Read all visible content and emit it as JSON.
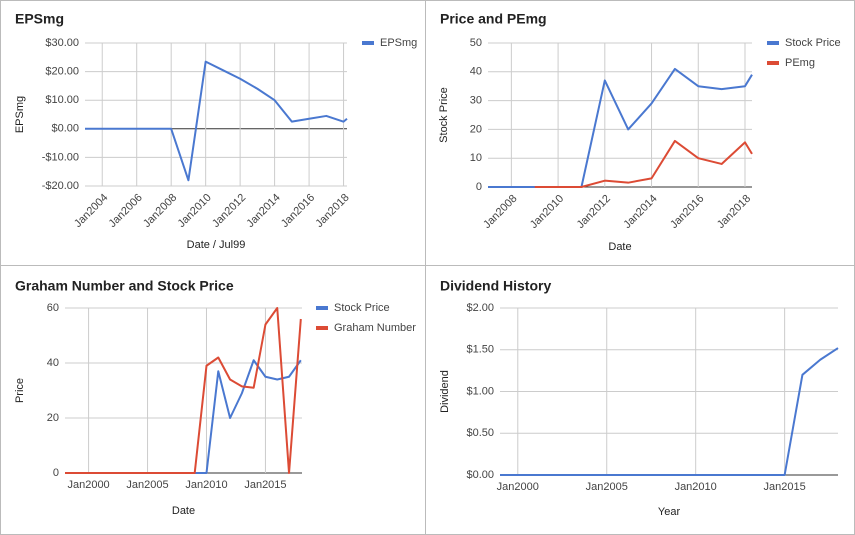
{
  "chart_data": [
    {
      "type": "line",
      "title": "EPSmg",
      "x_label": "Date / Jul99",
      "y_label": "EPSmg",
      "x": [
        2003,
        2004,
        2005,
        2006,
        2007,
        2008,
        2009,
        2010,
        2011,
        2012,
        2013,
        2014,
        2015,
        2016,
        2017,
        2018,
        2018.2
      ],
      "series": [
        {
          "name": "EPSmg",
          "color": "#4a78d0",
          "values": [
            0,
            0,
            0,
            0,
            0,
            0,
            -18,
            23.5,
            20.5,
            17.5,
            14,
            10,
            2.5,
            3.5,
            4.5,
            2.5,
            3.5
          ]
        }
      ],
      "xlim": [
        2003,
        2018.2
      ],
      "xticks": [
        {
          "value": 2004,
          "label": "Jan2004"
        },
        {
          "value": 2006,
          "label": "Jan2006"
        },
        {
          "value": 2008,
          "label": "Jan2008"
        },
        {
          "value": 2010,
          "label": "Jan2010"
        },
        {
          "value": 2012,
          "label": "Jan2012"
        },
        {
          "value": 2014,
          "label": "Jan2014"
        },
        {
          "value": 2016,
          "label": "Jan2016"
        },
        {
          "value": 2018,
          "label": "Jan2018"
        }
      ],
      "ylim": [
        -20,
        30
      ],
      "yticks": [
        {
          "value": -20,
          "label": "-$20.00"
        },
        {
          "value": -10,
          "label": "-$10.00"
        },
        {
          "value": 0,
          "label": "$0.00"
        },
        {
          "value": 10,
          "label": "$10.00"
        },
        {
          "value": 20,
          "label": "$20.00"
        },
        {
          "value": 30,
          "label": "$30.00"
        }
      ],
      "grid": true,
      "legend": "right"
    },
    {
      "type": "line",
      "title": "Price and PEmg",
      "x_label": "Date",
      "y_label": "Stock Price",
      "x": [
        2007,
        2008,
        2009,
        2010,
        2011,
        2012,
        2013,
        2014,
        2015,
        2016,
        2017,
        2018,
        2018.3
      ],
      "series": [
        {
          "name": "Stock Price",
          "color": "#4a78d0",
          "values": [
            0,
            0,
            0,
            0,
            0,
            37,
            20,
            29,
            41,
            35,
            34,
            35,
            39
          ]
        },
        {
          "name": "PEmg",
          "color": "#dc4b35",
          "values": [
            null,
            null,
            0,
            0,
            0,
            2.2,
            1.5,
            3,
            16,
            10,
            8,
            15.5,
            11.5
          ]
        }
      ],
      "xlim": [
        2007,
        2018.3
      ],
      "xticks": [
        {
          "value": 2008,
          "label": "Jan2008"
        },
        {
          "value": 2010,
          "label": "Jan2010"
        },
        {
          "value": 2012,
          "label": "Jan2012"
        },
        {
          "value": 2014,
          "label": "Jan2014"
        },
        {
          "value": 2016,
          "label": "Jan2016"
        },
        {
          "value": 2018,
          "label": "Jan2018"
        }
      ],
      "ylim": [
        0,
        50
      ],
      "yticks": [
        0,
        10,
        20,
        30,
        40,
        50
      ],
      "grid": true,
      "legend": "right"
    },
    {
      "type": "line",
      "title": "Graham Number and Stock Price",
      "x_label": "Date",
      "y_label": "Price",
      "x": [
        1998,
        1999,
        2000,
        2001,
        2002,
        2003,
        2004,
        2005,
        2006,
        2007,
        2008,
        2009,
        2010,
        2011,
        2012,
        2013,
        2014,
        2015,
        2016,
        2017,
        2018
      ],
      "series": [
        {
          "name": "Stock Price",
          "color": "#4a78d0",
          "values": [
            0,
            0,
            0,
            0,
            0,
            0,
            0,
            0,
            0,
            0,
            0,
            0,
            0,
            37,
            20,
            29,
            41,
            35,
            34,
            35,
            41
          ]
        },
        {
          "name": "Graham Number",
          "color": "#dc4b35",
          "values": [
            0,
            0,
            0,
            0,
            0,
            0,
            0,
            0,
            0,
            0,
            0,
            0,
            39,
            42,
            34,
            31.5,
            31,
            54,
            60,
            0,
            56
          ]
        }
      ],
      "xlim": [
        1998,
        2018.1
      ],
      "xticks": [
        {
          "value": 2000,
          "label": "Jan2000"
        },
        {
          "value": 2005,
          "label": "Jan2005"
        },
        {
          "value": 2010,
          "label": "Jan2010"
        },
        {
          "value": 2015,
          "label": "Jan2015"
        }
      ],
      "ylim": [
        0,
        60
      ],
      "yticks": [
        0,
        20,
        40,
        60
      ],
      "grid": true,
      "legend": "right"
    },
    {
      "type": "line",
      "title": "Dividend History",
      "x_label": "Year",
      "y_label": "Dividend",
      "x": [
        1999,
        2000,
        2001,
        2002,
        2003,
        2004,
        2005,
        2006,
        2007,
        2008,
        2009,
        2010,
        2011,
        2012,
        2013,
        2014,
        2015,
        2016,
        2017,
        2018
      ],
      "series": [
        {
          "color": "#4a78d0",
          "values": [
            0,
            0,
            0,
            0,
            0,
            0,
            0,
            0,
            0,
            0,
            0,
            0,
            0,
            0,
            0,
            0,
            0,
            1.2,
            1.38,
            1.52
          ]
        }
      ],
      "xlim": [
        1999,
        2018
      ],
      "xticks": [
        {
          "value": 2000,
          "label": "Jan2000"
        },
        {
          "value": 2005,
          "label": "Jan2005"
        },
        {
          "value": 2010,
          "label": "Jan2010"
        },
        {
          "value": 2015,
          "label": "Jan2015"
        }
      ],
      "ylim": [
        0,
        2
      ],
      "yticks": [
        {
          "value": 0,
          "label": "$0.00"
        },
        {
          "value": 0.5,
          "label": "$0.50"
        },
        {
          "value": 1,
          "label": "$1.00"
        },
        {
          "value": 1.5,
          "label": "$1.50"
        },
        {
          "value": 2,
          "label": "$2.00"
        }
      ],
      "grid": true
    }
  ]
}
